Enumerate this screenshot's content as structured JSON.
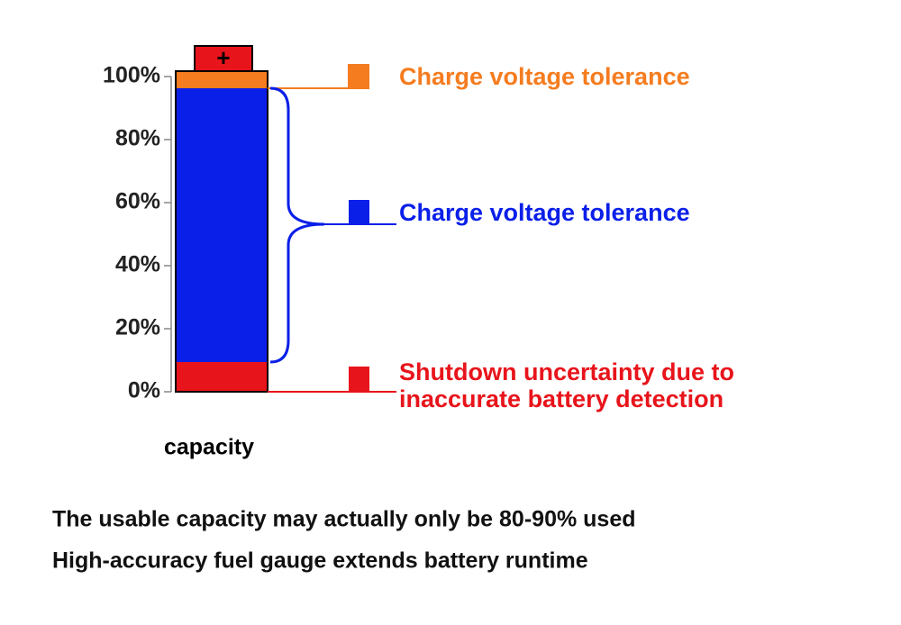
{
  "axis": {
    "ticks": [
      "100%",
      "80%",
      "60%",
      "40%",
      "20%",
      "0%"
    ],
    "label": "capacity"
  },
  "battery": {
    "terminal": "+"
  },
  "callouts": [
    {
      "lines": [
        "Charge voltage tolerance"
      ]
    },
    {
      "lines": [
        "Charge voltage tolerance"
      ]
    },
    {
      "lines": [
        "Shutdown uncertainty due to",
        "inaccurate battery detection"
      ]
    }
  ],
  "caption": [
    "The usable capacity may actually only be 80-90% used",
    "High-accuracy fuel gauge extends battery runtime"
  ]
}
